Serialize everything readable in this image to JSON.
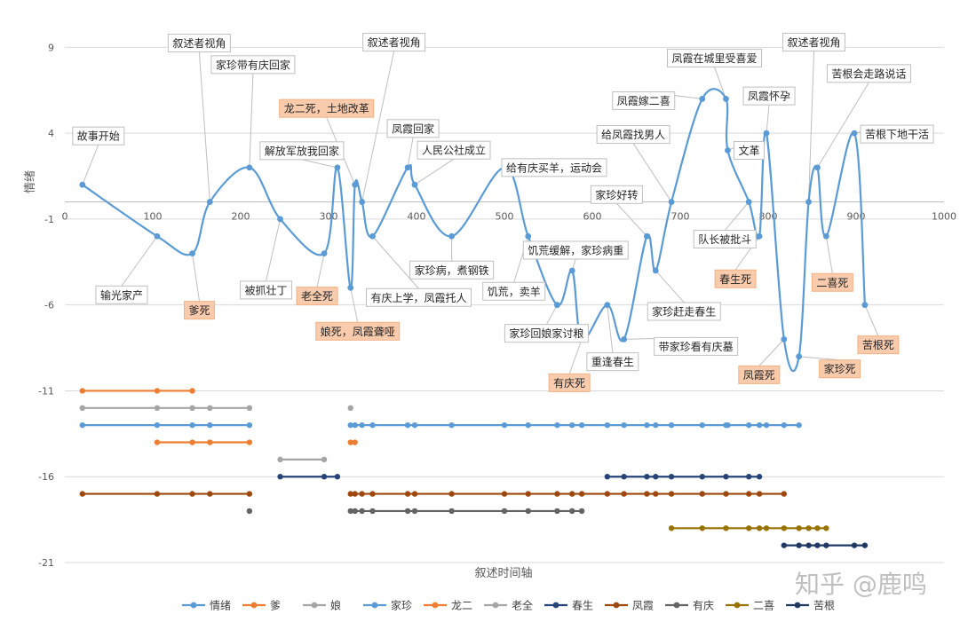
{
  "chart_data": {
    "type": "line",
    "xlabel": "叙述时间轴",
    "ylabel": "情绪",
    "xlim": [
      0,
      1000
    ],
    "ylim": [
      -21,
      10
    ],
    "x_ticks": [
      0,
      100,
      200,
      300,
      400,
      500,
      600,
      700,
      800,
      900,
      1000
    ],
    "y_ticks": [
      9,
      4,
      -1,
      -6,
      -11,
      -16,
      -21
    ],
    "x_axis_at": 0,
    "watermark": "知乎 @鹿鸣",
    "emotion": {
      "name": "情绪",
      "color": "#5b9bd5",
      "points": [
        [
          20,
          1
        ],
        [
          105,
          -2
        ],
        [
          145,
          -3
        ],
        [
          165,
          0
        ],
        [
          210,
          2
        ],
        [
          245,
          -1
        ],
        [
          295,
          -3
        ],
        [
          310,
          2
        ],
        [
          325,
          -5
        ],
        [
          330,
          1
        ],
        [
          338,
          0
        ],
        [
          350,
          -2
        ],
        [
          390,
          2
        ],
        [
          398,
          1
        ],
        [
          440,
          -2
        ],
        [
          500,
          2
        ],
        [
          527,
          -2
        ],
        [
          560,
          -6
        ],
        [
          577,
          -4
        ],
        [
          588,
          -8
        ],
        [
          617,
          -6
        ],
        [
          636,
          -8
        ],
        [
          662,
          -2
        ],
        [
          672,
          -4
        ],
        [
          690,
          0
        ],
        [
          725,
          6
        ],
        [
          752,
          6
        ],
        [
          754,
          3
        ],
        [
          778,
          0
        ],
        [
          790,
          -2
        ],
        [
          798,
          4
        ],
        [
          818,
          -8
        ],
        [
          835,
          -9
        ],
        [
          846,
          0
        ],
        [
          856,
          2
        ],
        [
          866,
          -2
        ],
        [
          898,
          4
        ],
        [
          910,
          -6
        ]
      ]
    },
    "annotations": [
      {
        "x": 20,
        "y": 1,
        "text": "故事开始",
        "dx": 18,
        "dy": -55,
        "death": false
      },
      {
        "x": 105,
        "y": -2,
        "text": "输光家产",
        "dx": -40,
        "dy": 66,
        "death": false
      },
      {
        "x": 145,
        "y": -3,
        "text": "爹死",
        "dx": 8,
        "dy": 64,
        "death": true
      },
      {
        "x": 165,
        "y": 0,
        "text": "叙述者视角",
        "dx": -12,
        "dy": -179,
        "death": false
      },
      {
        "x": 210,
        "y": 2,
        "text": "家珍带有庆回家",
        "dx": 4,
        "dy": -116,
        "death": false
      },
      {
        "x": 245,
        "y": -1,
        "text": "被抓壮丁",
        "dx": -16,
        "dy": 80,
        "death": false
      },
      {
        "x": 295,
        "y": -3,
        "text": "老全死",
        "dx": -8,
        "dy": 48,
        "death": true
      },
      {
        "x": 310,
        "y": 2,
        "text": "解放军放我回家",
        "dx": -40,
        "dy": -19,
        "death": false
      },
      {
        "x": 325,
        "y": -5,
        "text": "娘死，凤霞聋哑",
        "dx": 8,
        "dy": 49,
        "death": true
      },
      {
        "x": 330,
        "y": 1,
        "text": "龙二死，土地改革",
        "dx": -32,
        "dy": -86,
        "death": true
      },
      {
        "x": 338,
        "y": 0,
        "text": "叙述者视角",
        "dx": 36,
        "dy": -180,
        "death": false
      },
      {
        "x": 350,
        "y": -2,
        "text": "有庆上学，凤霞托人",
        "dx": 52,
        "dy": 69,
        "death": false
      },
      {
        "x": 390,
        "y": 2,
        "text": "凤霞回家",
        "dx": 6,
        "dy": -44,
        "death": false
      },
      {
        "x": 398,
        "y": 1,
        "text": "人民公社成立",
        "dx": 44,
        "dy": -39,
        "death": false
      },
      {
        "x": 440,
        "y": -2,
        "text": "家珍病，煮钢铁",
        "dx": 0,
        "dy": 38,
        "death": false
      },
      {
        "x": 500,
        "y": 2,
        "text": "给有庆买羊，运动会",
        "dx": 56,
        "dy": 0,
        "death": false
      },
      {
        "x": 527,
        "y": -2,
        "text": "饥荒，卖羊",
        "dx": -16,
        "dy": 62,
        "death": false
      },
      {
        "x": 560,
        "y": -6,
        "text": "家珍回娘家讨粮",
        "dx": -12,
        "dy": 32,
        "death": false
      },
      {
        "x": 577,
        "y": -4,
        "text": "饥荒缓解，家珍病重",
        "dx": 4,
        "dy": -23,
        "death": false
      },
      {
        "x": 588,
        "y": -8,
        "text": "有庆死",
        "dx": -14,
        "dy": 49,
        "death": true
      },
      {
        "x": 617,
        "y": -6,
        "text": "重逢春生",
        "dx": 6,
        "dy": 64,
        "death": false
      },
      {
        "x": 636,
        "y": -8,
        "text": "带家珍看有庆墓",
        "dx": 81,
        "dy": 8,
        "death": false
      },
      {
        "x": 662,
        "y": -2,
        "text": "家珍好转",
        "dx": -34,
        "dy": -47,
        "death": false
      },
      {
        "x": 672,
        "y": -4,
        "text": "家珍赶走春生",
        "dx": 32,
        "dy": 46,
        "death": false
      },
      {
        "x": 690,
        "y": 0,
        "text": "给凤霞找男人",
        "dx": -43,
        "dy": -76,
        "death": false
      },
      {
        "x": 725,
        "y": 6,
        "text": "凤霞嫁二喜",
        "dx": -66,
        "dy": 2,
        "death": false
      },
      {
        "x": 752,
        "y": 6,
        "text": "凤霞在城里受喜爱",
        "dx": -13,
        "dy": -46,
        "death": false
      },
      {
        "x": 754,
        "y": 3,
        "text": "文革",
        "dx": 24,
        "dy": 0,
        "death": false
      },
      {
        "x": 778,
        "y": 0,
        "text": "队长被批斗",
        "dx": -27,
        "dy": 42,
        "death": false
      },
      {
        "x": 790,
        "y": -2,
        "text": "春生死",
        "dx": -27,
        "dy": 48,
        "death": true
      },
      {
        "x": 798,
        "y": 4,
        "text": "凤霞怀孕",
        "dx": 3,
        "dy": -42,
        "death": false
      },
      {
        "x": 818,
        "y": -8,
        "text": "凤霞死",
        "dx": -28,
        "dy": 40,
        "death": true
      },
      {
        "x": 835,
        "y": -9,
        "text": "家珍死",
        "dx": 46,
        "dy": 14,
        "death": true
      },
      {
        "x": 846,
        "y": 0,
        "text": "叙述者视角",
        "dx": 6,
        "dy": -180,
        "death": false
      },
      {
        "x": 856,
        "y": 2,
        "text": "苦根会走路说话",
        "dx": 58,
        "dy": -106,
        "death": false
      },
      {
        "x": 866,
        "y": -2,
        "text": "二喜死",
        "dx": 7,
        "dy": 52,
        "death": true
      },
      {
        "x": 898,
        "y": 4,
        "text": "苦根下地干活",
        "dx": 48,
        "dy": 1,
        "death": false
      },
      {
        "x": 910,
        "y": -6,
        "text": "苦根死",
        "dx": 15,
        "dy": 45,
        "death": true
      }
    ],
    "series": [
      {
        "name": "爹",
        "color": "#ed7d31",
        "y": -11,
        "x": [
          [
            20,
            105,
            145
          ]
        ]
      },
      {
        "name": "娘",
        "color": "#a5a5a5",
        "y": -12,
        "x": [
          [
            20,
            105,
            145,
            165,
            210
          ],
          [
            325
          ]
        ]
      },
      {
        "name": "家珍",
        "color": "#5b9bd5",
        "y": -13,
        "x": [
          [
            20,
            105,
            145,
            165,
            210
          ],
          [
            325,
            330,
            338,
            350,
            390,
            398,
            440,
            500,
            527,
            560,
            577,
            588,
            617,
            636,
            662,
            672,
            690,
            725,
            752,
            754,
            778,
            790,
            798,
            818,
            835
          ]
        ]
      },
      {
        "name": "龙二",
        "color": "#ed7d31",
        "y": -14,
        "x": [
          [
            105,
            145,
            165,
            210
          ],
          [
            325,
            330
          ]
        ]
      },
      {
        "name": "老全",
        "color": "#a5a5a5",
        "y": -15,
        "x": [
          [
            245,
            295
          ]
        ]
      },
      {
        "name": "春生",
        "color": "#264478",
        "y": -16,
        "x": [
          [
            245,
            295,
            310
          ],
          [
            617,
            636,
            662,
            672,
            690,
            725,
            752,
            778,
            790
          ]
        ]
      },
      {
        "name": "凤霞",
        "color": "#9e480e",
        "y": -17,
        "x": [
          [
            20,
            105,
            145,
            165,
            210
          ],
          [
            325,
            330,
            338,
            350,
            390,
            398,
            440,
            500,
            527,
            560,
            577,
            588,
            617,
            636,
            662,
            672,
            690,
            725,
            752,
            778,
            790,
            818
          ]
        ]
      },
      {
        "name": "有庆",
        "color": "#636363",
        "y": -18,
        "x": [
          [
            210
          ],
          [
            325,
            330,
            338,
            350,
            390,
            398,
            440,
            500,
            527,
            560,
            577,
            588
          ]
        ]
      },
      {
        "name": "二喜",
        "color": "#997300",
        "y": -19,
        "x": [
          [
            690,
            725,
            752,
            778,
            790,
            798,
            818,
            835,
            846,
            856,
            866
          ]
        ]
      },
      {
        "name": "苦根",
        "color": "#1f3864",
        "y": -20,
        "x": [
          [
            818,
            835,
            846,
            856,
            866,
            898,
            910
          ]
        ]
      }
    ]
  }
}
